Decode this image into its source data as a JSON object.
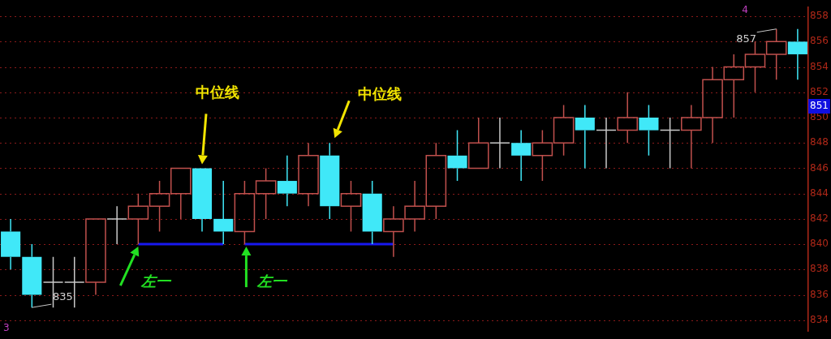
{
  "chart_data": {
    "type": "candlestick",
    "categories": [
      null,
      null,
      null,
      null,
      null,
      null,
      null,
      null,
      null,
      null,
      null,
      null,
      null,
      null,
      null,
      null,
      null,
      null,
      null,
      null,
      null,
      null,
      null,
      null,
      null,
      null,
      null,
      null,
      null,
      null,
      null,
      null,
      null,
      null,
      null,
      null,
      null,
      null
    ],
    "ohlc": [
      [
        841,
        842,
        838,
        839
      ],
      [
        839,
        840,
        835,
        836
      ],
      [
        837,
        839,
        835,
        837
      ],
      [
        837,
        839,
        835,
        837
      ],
      [
        837,
        842,
        836,
        842
      ],
      [
        842,
        843,
        840,
        842
      ],
      [
        842,
        844,
        840,
        843
      ],
      [
        843,
        845,
        841,
        844
      ],
      [
        844,
        846,
        842,
        846
      ],
      [
        846,
        846,
        841,
        842
      ],
      [
        842,
        845,
        840,
        841
      ],
      [
        841,
        845,
        840,
        844
      ],
      [
        844,
        846,
        842,
        845
      ],
      [
        845,
        847,
        843,
        844
      ],
      [
        844,
        848,
        843,
        847
      ],
      [
        847,
        848,
        842,
        843
      ],
      [
        843,
        845,
        841,
        844
      ],
      [
        844,
        845,
        840,
        841
      ],
      [
        841,
        843,
        839,
        842
      ],
      [
        842,
        845,
        841,
        843
      ],
      [
        843,
        848,
        842,
        847
      ],
      [
        847,
        849,
        845,
        846
      ],
      [
        846,
        850,
        846,
        848
      ],
      [
        848,
        850,
        846,
        848
      ],
      [
        848,
        849,
        845,
        847
      ],
      [
        847,
        849,
        845,
        848
      ],
      [
        848,
        851,
        847,
        850
      ],
      [
        850,
        851,
        846,
        849
      ],
      [
        849,
        850,
        846,
        849
      ],
      [
        849,
        852,
        848,
        850
      ],
      [
        850,
        851,
        847,
        849
      ],
      [
        849,
        850,
        846,
        849
      ],
      [
        849,
        851,
        846,
        850
      ],
      [
        850,
        854,
        848,
        853
      ],
      [
        853,
        855,
        850,
        854
      ],
      [
        854,
        856,
        852,
        855
      ],
      [
        855,
        857,
        853,
        856
      ],
      [
        856,
        857,
        853,
        855
      ]
    ],
    "colors": [
      "#40e8f8",
      "#40e8f8",
      "#c8c8c8",
      "#c8c8c8",
      "#c0504d",
      "#c8c8c8",
      "#c0504d",
      "#c0504d",
      "#c0504d",
      "#40e8f8",
      "#40e8f8",
      "#c0504d",
      "#c0504d",
      "#40e8f8",
      "#c0504d",
      "#40e8f8",
      "#c0504d",
      "#40e8f8",
      "#c0504d",
      "#c0504d",
      "#c0504d",
      "#40e8f8",
      "#c0504d",
      "#c8c8c8",
      "#40e8f8",
      "#c0504d",
      "#c0504d",
      "#40e8f8",
      "#c8c8c8",
      "#c0504d",
      "#40e8f8",
      "#c8c8c8",
      "#c0504d",
      "#c0504d",
      "#c0504d",
      "#c0504d",
      "#c0504d",
      "#40e8f8"
    ],
    "series": [
      {
        "type": "line",
        "color": "#1818f0",
        "values": [
          null,
          null,
          null,
          null,
          null,
          null,
          840,
          840,
          840,
          840,
          840,
          null,
          null,
          null,
          null,
          null,
          null,
          null,
          null,
          null,
          null,
          null,
          null,
          null,
          null,
          null,
          null,
          null,
          null,
          null,
          null,
          null,
          null,
          null,
          null,
          null,
          null,
          null
        ]
      },
      {
        "type": "line",
        "color": "#1818f0",
        "values": [
          null,
          null,
          null,
          null,
          null,
          null,
          null,
          null,
          null,
          null,
          null,
          840,
          840,
          840,
          840,
          840,
          840,
          840,
          840,
          null,
          null,
          null,
          null,
          null,
          null,
          null,
          null,
          null,
          null,
          null,
          null,
          null,
          null,
          null,
          null,
          null,
          null,
          null
        ]
      }
    ],
    "ylim": [
      833.1,
      858.7
    ],
    "yticks": [
      834,
      836,
      838,
      840,
      842,
      844,
      846,
      848,
      850,
      852,
      854,
      856,
      858
    ],
    "grid": "y",
    "legend": false,
    "tick_labels": "y",
    "marker": "none",
    "annotations": [
      "中位线",
      "中位线",
      "左一",
      "左一",
      "835",
      "857",
      "3",
      "4",
      "851"
    ]
  }
}
